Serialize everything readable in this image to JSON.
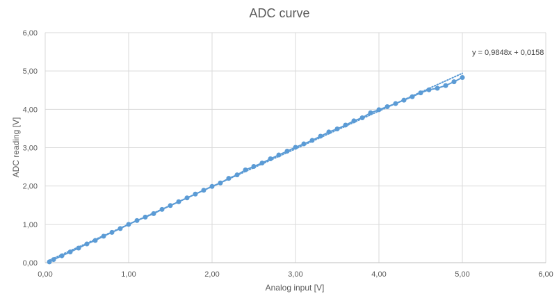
{
  "chart_data": {
    "type": "scatter",
    "title": "ADC curve",
    "xlabel": "Analog input [V]",
    "ylabel": "ADC reading [V]",
    "xlim": [
      0,
      6
    ],
    "ylim": [
      0,
      6
    ],
    "xticks": [
      "0,00",
      "1,00",
      "2,00",
      "3,00",
      "4,00",
      "5,00",
      "6,00"
    ],
    "yticks": [
      "0,00",
      "1,00",
      "2,00",
      "3,00",
      "4,00",
      "5,00",
      "6,00"
    ],
    "grid": true,
    "legend": "none",
    "series": [
      {
        "x": [
          0.05,
          0.1,
          0.2,
          0.3,
          0.4,
          0.5,
          0.6,
          0.7,
          0.8,
          0.9,
          1.0,
          1.1,
          1.2,
          1.3,
          1.4,
          1.5,
          1.6,
          1.7,
          1.8,
          1.9,
          2.0,
          2.1,
          2.2,
          2.3,
          2.4,
          2.5,
          2.6,
          2.7,
          2.8,
          2.9,
          3.0,
          3.1,
          3.2,
          3.3,
          3.4,
          3.5,
          3.6,
          3.7,
          3.8,
          3.9,
          4.0,
          4.1,
          4.2,
          4.3,
          4.4,
          4.5,
          4.6,
          4.7,
          4.8,
          4.9,
          5.0
        ],
        "y": [
          0.02,
          0.08,
          0.18,
          0.28,
          0.38,
          0.49,
          0.58,
          0.69,
          0.79,
          0.89,
          1.0,
          1.1,
          1.19,
          1.28,
          1.39,
          1.49,
          1.59,
          1.69,
          1.79,
          1.89,
          1.99,
          2.08,
          2.2,
          2.29,
          2.42,
          2.51,
          2.6,
          2.71,
          2.81,
          2.91,
          3.01,
          3.1,
          3.19,
          3.3,
          3.41,
          3.49,
          3.59,
          3.7,
          3.78,
          3.91,
          3.99,
          4.07,
          4.15,
          4.24,
          4.33,
          4.43,
          4.51,
          4.55,
          4.62,
          4.72,
          4.83
        ]
      }
    ],
    "trendline": {
      "type": "linear",
      "slope": 0.9848,
      "intercept": 0.0158,
      "x_range": [
        0.05,
        5.0
      ],
      "label": "y = 0,9848x + 0,0158"
    },
    "colors": {
      "series": "#5b9bd5",
      "grid": "#d9d9d9",
      "axis": "#bfbfbf",
      "text": "#595959"
    }
  }
}
